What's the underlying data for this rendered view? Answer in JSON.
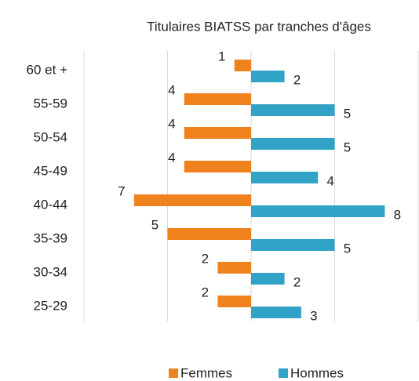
{
  "chart_data": {
    "type": "pyramid",
    "title": "Titulaires BIATSS par tranches d'âges",
    "categories": [
      "60 et +",
      "55-59",
      "50-54",
      "45-49",
      "40-44",
      "35-39",
      "30-34",
      "25-29"
    ],
    "series": [
      {
        "name": "Femmes",
        "color": "#f0821e",
        "direction": "left",
        "values": [
          1,
          4,
          4,
          4,
          7,
          5,
          2,
          2
        ]
      },
      {
        "name": "Hommes",
        "color": "#31a3c6",
        "direction": "right",
        "values": [
          2,
          5,
          5,
          4,
          8,
          5,
          2,
          3
        ]
      }
    ],
    "xlim": [
      -10,
      10
    ],
    "xticks": [
      -10,
      -5,
      0,
      5,
      10
    ],
    "grid": true,
    "legend": "bottom"
  }
}
